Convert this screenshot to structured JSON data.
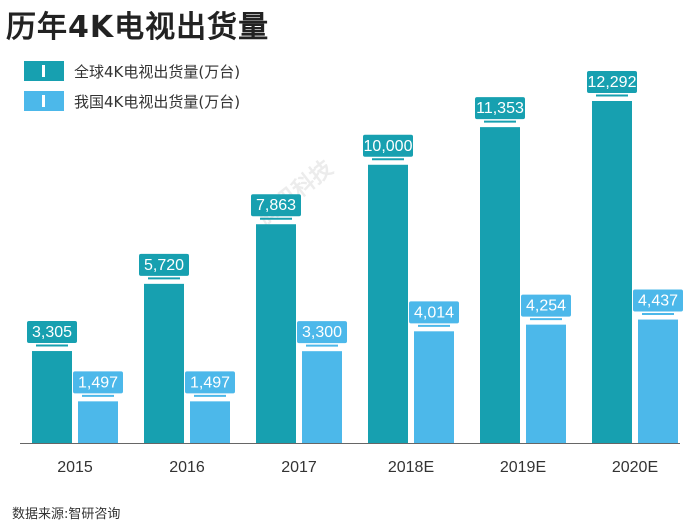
{
  "title": "历年4K电视出货量",
  "source": "数据来源:智研咨询",
  "watermark": "腾讯科技",
  "colors": {
    "global": "#17a0b0",
    "china": "#4cb8ea",
    "axis": "#666666",
    "text": "#333333"
  },
  "chart_data": {
    "type": "bar",
    "categories": [
      "2015",
      "2016",
      "2017",
      "2018E",
      "2019E",
      "2020E"
    ],
    "series": [
      {
        "name": "全球4K电视出货量(万台)",
        "values": [
          3305,
          5720,
          7863,
          10000,
          11353,
          12292
        ]
      },
      {
        "name": "我国4K电视出货量(万台)",
        "values": [
          1497,
          1497,
          3300,
          4014,
          4254,
          4437
        ]
      }
    ],
    "value_labels": [
      [
        "3,305",
        "5,720",
        "7,863",
        "10,000",
        "11,353",
        "12,292"
      ],
      [
        "1,497",
        "1,497",
        "3,300",
        "4,014",
        "4,254",
        "4,437"
      ]
    ],
    "ylim": [
      0,
      12292
    ],
    "grid": false,
    "legend_position": "top-left"
  }
}
